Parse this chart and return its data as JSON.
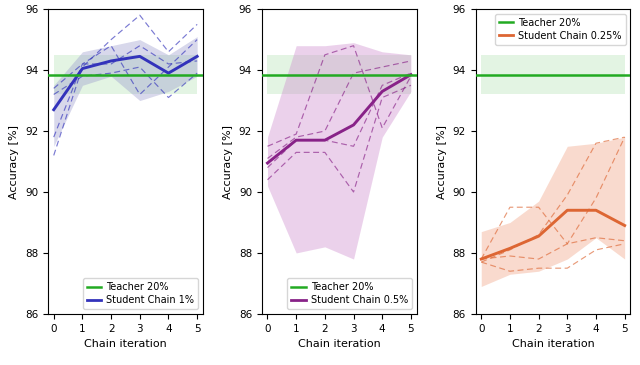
{
  "x": [
    0,
    1,
    2,
    3,
    4,
    5
  ],
  "teacher_val": 93.85,
  "teacher_std_low": 93.2,
  "teacher_std_high": 94.5,
  "panel1": {
    "label_teacher": "Teacher 20%",
    "label_student": "Student Chain 1%",
    "student_mean": [
      92.7,
      94.05,
      94.3,
      94.45,
      93.9,
      94.45
    ],
    "fill_low": [
      91.5,
      93.5,
      93.8,
      93.0,
      93.3,
      93.8
    ],
    "fill_high": [
      93.5,
      94.6,
      94.8,
      95.0,
      94.5,
      95.1
    ],
    "dashed_lines": [
      [
        91.2,
        94.1,
        95.0,
        95.8,
        94.6,
        95.5
      ],
      [
        91.8,
        94.2,
        94.8,
        93.2,
        94.1,
        95.0
      ],
      [
        93.4,
        94.2,
        94.2,
        94.8,
        94.2,
        94.3
      ],
      [
        93.2,
        93.8,
        93.9,
        94.1,
        93.1,
        93.9
      ]
    ],
    "color_student": "#3333bb",
    "color_fill": "#9999cc",
    "color_teacher": "#22aa22",
    "color_teacher_fill": "#aaddaa"
  },
  "panel2": {
    "label_teacher": "Teacher 20%",
    "label_student": "Student Chain 0.5%",
    "student_mean": [
      90.95,
      91.7,
      91.7,
      92.2,
      93.3,
      93.85
    ],
    "fill_low": [
      90.2,
      88.0,
      88.2,
      87.8,
      91.8,
      93.3
    ],
    "fill_high": [
      91.8,
      94.8,
      94.8,
      94.9,
      94.6,
      94.5
    ],
    "dashed_lines": [
      [
        91.5,
        91.9,
        94.5,
        94.8,
        92.1,
        93.8
      ],
      [
        91.1,
        91.8,
        92.0,
        93.9,
        94.1,
        94.3
      ],
      [
        90.8,
        91.7,
        91.7,
        91.5,
        93.5,
        93.9
      ],
      [
        90.4,
        91.3,
        91.3,
        90.0,
        93.1,
        93.5
      ]
    ],
    "color_student": "#882288",
    "color_fill": "#cc88cc",
    "color_teacher": "#22aa22",
    "color_teacher_fill": "#aaddaa"
  },
  "panel3": {
    "label_teacher": "Teacher 20%",
    "label_student": "Student Chain 0.25%",
    "student_mean": [
      87.8,
      88.15,
      88.55,
      89.4,
      89.4,
      88.9
    ],
    "fill_low": [
      86.9,
      87.3,
      87.4,
      87.8,
      88.5,
      87.8
    ],
    "fill_high": [
      88.7,
      89.0,
      89.7,
      91.5,
      91.6,
      91.8
    ],
    "dashed_lines": [
      [
        87.8,
        89.5,
        89.5,
        88.3,
        89.8,
        91.8
      ],
      [
        87.7,
        88.1,
        88.6,
        89.9,
        91.6,
        91.8
      ],
      [
        87.8,
        87.9,
        87.8,
        88.3,
        88.5,
        88.4
      ],
      [
        87.7,
        87.4,
        87.5,
        87.5,
        88.1,
        88.3
      ]
    ],
    "color_student": "#dd6633",
    "color_fill": "#f0a080",
    "color_teacher": "#22aa22",
    "color_teacher_fill": "#aaddaa"
  },
  "ylim": [
    86,
    96
  ],
  "yticks": [
    86,
    88,
    90,
    92,
    94,
    96
  ],
  "xlabel": "Chain iteration",
  "ylabel": "Accuracy [%]"
}
